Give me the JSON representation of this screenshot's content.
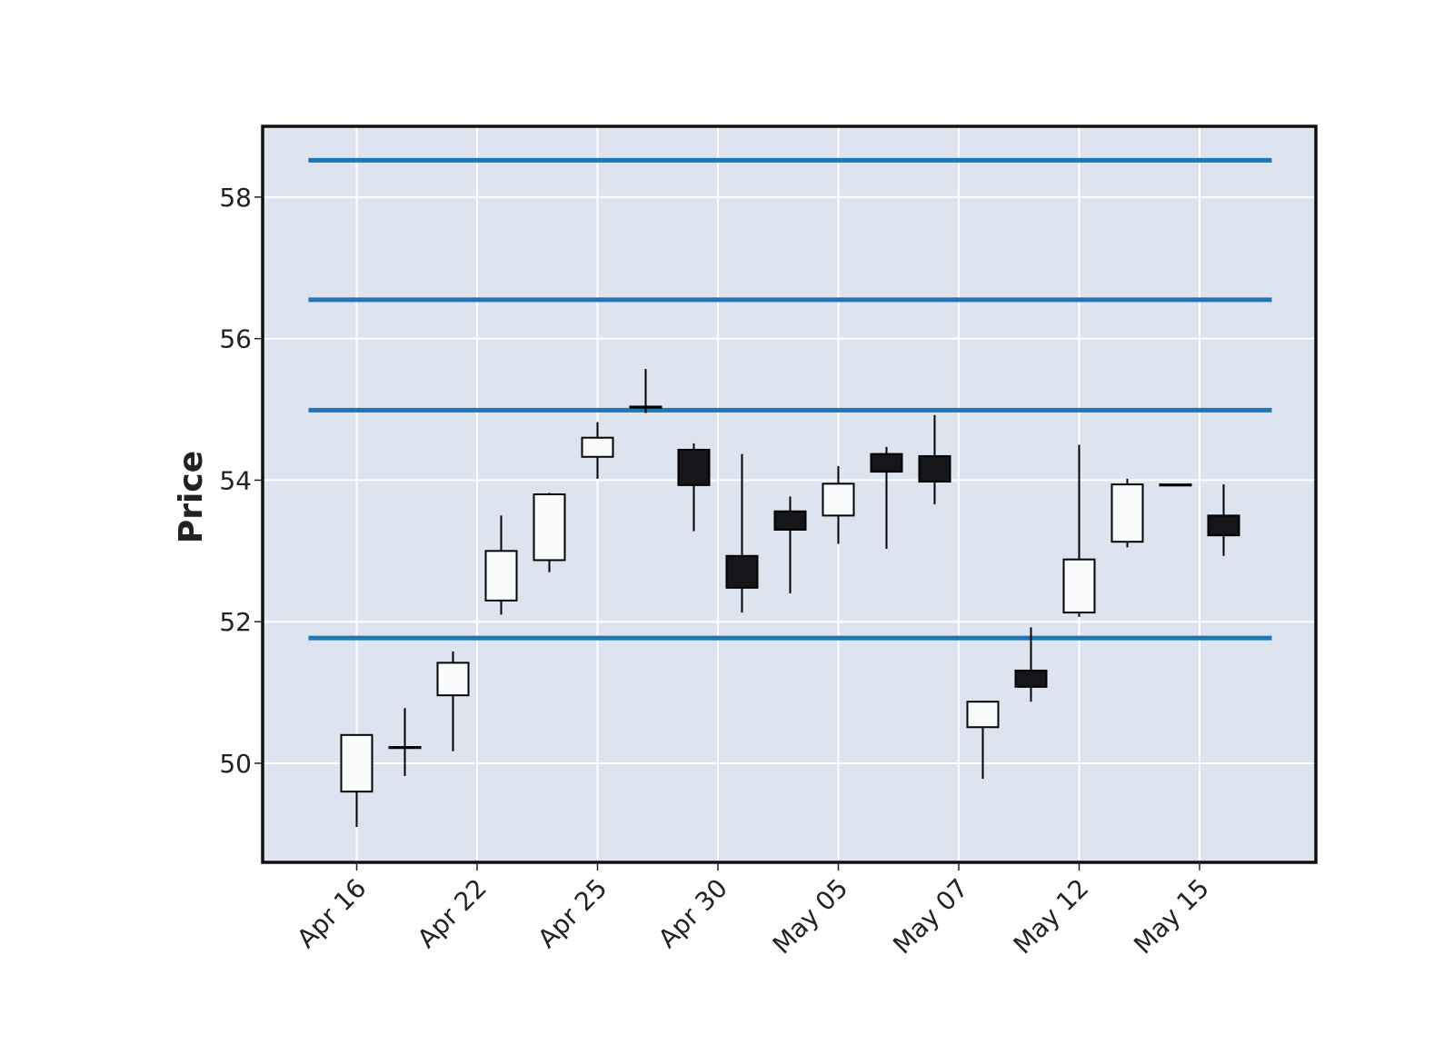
{
  "chart_data": {
    "type": "candlestick",
    "ylabel": "Price",
    "ylim": [
      48.6,
      59.0
    ],
    "yticks": [
      50,
      52,
      54,
      56,
      58
    ],
    "grid": true,
    "colors": {
      "background": "#dde3ef",
      "grid": "#ffffff",
      "up": "#fafbfd",
      "down": "#16161a",
      "edge": "#000000",
      "hlines": "#2275b4"
    },
    "xtick_labels": [
      {
        "index": 0,
        "label": "Apr 16"
      },
      {
        "index": 2.5,
        "label": "Apr 22"
      },
      {
        "index": 5,
        "label": "Apr 25"
      },
      {
        "index": 7.5,
        "label": "Apr 30"
      },
      {
        "index": 10,
        "label": "May 05"
      },
      {
        "index": 12.5,
        "label": "May 07"
      },
      {
        "index": 15,
        "label": "May 12"
      },
      {
        "index": 17.5,
        "label": "May 15"
      }
    ],
    "candles": [
      {
        "open": 49.6,
        "high": 50.4,
        "low": 49.1,
        "close": 50.4
      },
      {
        "open": 50.22,
        "high": 50.78,
        "low": 49.82,
        "close": 50.23
      },
      {
        "open": 50.96,
        "high": 51.58,
        "low": 50.17,
        "close": 51.42
      },
      {
        "open": 52.3,
        "high": 53.5,
        "low": 52.1,
        "close": 53.0
      },
      {
        "open": 52.87,
        "high": 53.82,
        "low": 52.7,
        "close": 53.8
      },
      {
        "open": 54.33,
        "high": 54.82,
        "low": 54.02,
        "close": 54.6
      },
      {
        "open": 55.03,
        "high": 55.57,
        "low": 54.95,
        "close": 55.04
      },
      {
        "open": 54.43,
        "high": 54.52,
        "low": 53.28,
        "close": 53.93
      },
      {
        "open": 52.93,
        "high": 54.37,
        "low": 52.13,
        "close": 52.48
      },
      {
        "open": 53.56,
        "high": 53.77,
        "low": 52.4,
        "close": 53.3
      },
      {
        "open": 53.5,
        "high": 54.2,
        "low": 53.1,
        "close": 53.95
      },
      {
        "open": 54.37,
        "high": 54.47,
        "low": 53.03,
        "close": 54.12
      },
      {
        "open": 54.34,
        "high": 54.92,
        "low": 53.66,
        "close": 53.98
      },
      {
        "open": 50.51,
        "high": 50.88,
        "low": 49.78,
        "close": 50.87
      },
      {
        "open": 51.31,
        "high": 51.92,
        "low": 50.87,
        "close": 51.08
      },
      {
        "open": 52.13,
        "high": 54.5,
        "low": 52.07,
        "close": 52.88
      },
      {
        "open": 53.13,
        "high": 54.02,
        "low": 53.05,
        "close": 53.94
      },
      {
        "open": 53.93,
        "high": 53.94,
        "low": 53.93,
        "close": 53.94
      },
      {
        "open": 53.5,
        "high": 53.94,
        "low": 52.93,
        "close": 53.22
      }
    ],
    "hlines": [
      58.52,
      56.55,
      54.99,
      51.77
    ]
  }
}
